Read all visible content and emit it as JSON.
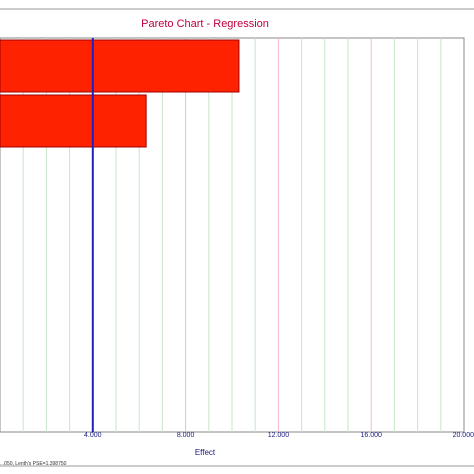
{
  "chart_data": {
    "type": "bar",
    "orientation": "horizontal",
    "title": "Pareto Chart - Regression",
    "xlabel": "Effect",
    "ylabel": "",
    "xlim": [
      0,
      20
    ],
    "x_ticks": [
      4,
      8,
      12,
      16,
      20
    ],
    "x_tick_labels": [
      "4.000",
      "8.000",
      "12.000",
      "16.000",
      "20.000"
    ],
    "bars": [
      {
        "value": 10.3
      },
      {
        "value": 6.3
      }
    ],
    "reference_line": {
      "value": 4.0,
      "color": "#2020c0"
    },
    "grid": true,
    "colors": {
      "bar_fill": "#ff2200",
      "bar_stroke": "#a00000",
      "major_grid": "#f2b8c6",
      "minor_grid": "#c8e6c8",
      "title": "#c0003c",
      "axis_label": "#1a1a80",
      "tick_label": "#1a1a80"
    }
  },
  "footnote": "...050, Lenth's PSE=1.398750"
}
